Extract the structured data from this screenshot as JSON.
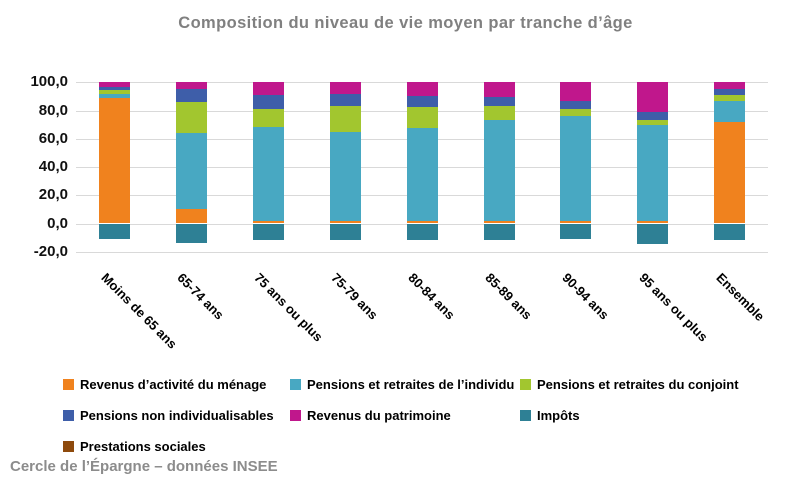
{
  "title": "Composition du niveau de vie moyen par tranche d’âge",
  "footer": "Cercle de l’Épargne – données INSEE",
  "chart_data": {
    "type": "bar",
    "stacked": true,
    "title": "Composition du niveau de vie moyen par tranche d’âge",
    "categories": [
      "Moins de 65 ans",
      "65-74 ans",
      "75 ans ou plus",
      "75-79 ans",
      "80-84 ans",
      "85-89 ans",
      "90-94 ans",
      "95 ans ou plus",
      "Ensemble"
    ],
    "series": [
      {
        "name": "Revenus d’activité du ménage",
        "color": "#F0821E",
        "values": [
          89,
          10,
          2,
          2,
          2,
          2,
          2,
          2,
          72
        ]
      },
      {
        "name": "Pensions et retraites de l’individu",
        "color": "#48A8C2",
        "values": [
          3,
          54,
          66,
          63,
          65.5,
          71.5,
          74,
          68,
          14.5
        ]
      },
      {
        "name": "Pensions et retraites du conjoint",
        "color": "#A2C62F",
        "values": [
          2.5,
          22,
          13,
          18.5,
          15,
          9.5,
          5,
          3.5,
          4.5
        ]
      },
      {
        "name": "Pensions non individualisables",
        "color": "#3E5EA9",
        "values": [
          2,
          9,
          10,
          8.5,
          8,
          6.5,
          5.5,
          5.5,
          4.5
        ]
      },
      {
        "name": "Revenus du patrimoine",
        "color": "#C0178C",
        "values": [
          3.5,
          5,
          9,
          8,
          9.5,
          10.5,
          13.5,
          21,
          4.5
        ]
      },
      {
        "name": "Impôts",
        "color": "#2E8095",
        "values": [
          -11,
          -14,
          -12,
          -12,
          -12,
          -12,
          -11,
          -14.5,
          -12
        ]
      },
      {
        "name": "Prestations sociales",
        "color": "#8E4A0C",
        "values": [
          0,
          0,
          0,
          0,
          0,
          0,
          0,
          0,
          0
        ]
      }
    ],
    "ylim": [
      -20,
      100
    ],
    "ytick_step": 20,
    "yticks": [
      100,
      80,
      60,
      40,
      20,
      0,
      -20
    ],
    "ytick_labels": [
      "100,0",
      "80,0",
      "60,0",
      "40,0",
      "20,0",
      "0,0",
      "-20,0"
    ],
    "grid": true,
    "gridline_color": "#D9D9D9",
    "legend_position": "bottom"
  }
}
